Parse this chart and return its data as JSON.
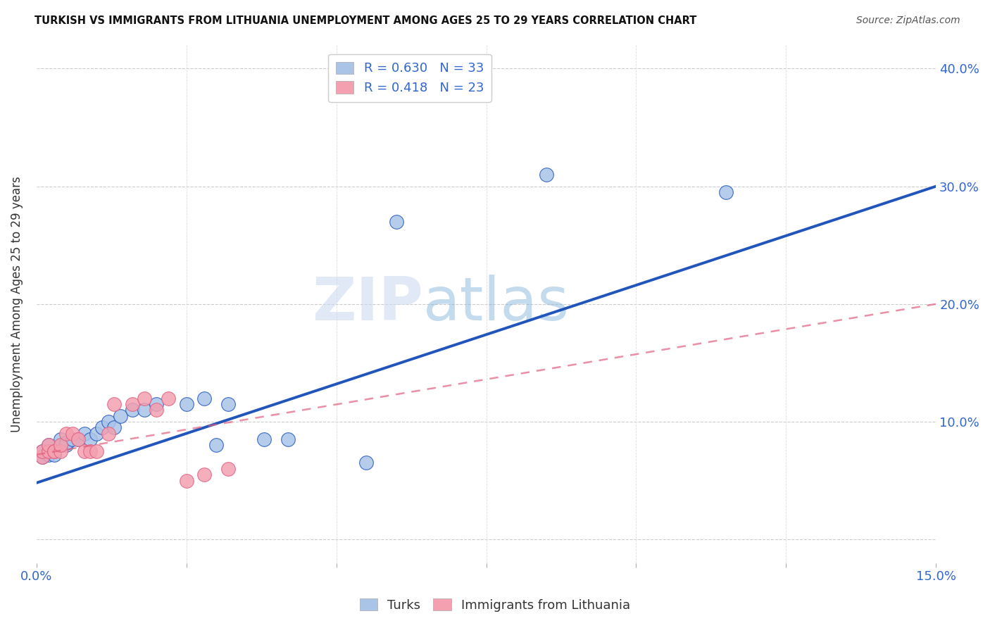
{
  "title": "TURKISH VS IMMIGRANTS FROM LITHUANIA UNEMPLOYMENT AMONG AGES 25 TO 29 YEARS CORRELATION CHART",
  "source": "Source: ZipAtlas.com",
  "ylabel": "Unemployment Among Ages 25 to 29 years",
  "xlim": [
    0.0,
    0.15
  ],
  "ylim": [
    -0.02,
    0.42
  ],
  "xtick_positions": [
    0.0,
    0.025,
    0.05,
    0.075,
    0.1,
    0.125,
    0.15
  ],
  "xticklabels": [
    "0.0%",
    "",
    "",
    "",
    "",
    "",
    "15.0%"
  ],
  "ytick_positions": [
    0.0,
    0.1,
    0.2,
    0.3,
    0.4
  ],
  "yticklabels_right": [
    "",
    "10.0%",
    "20.0%",
    "30.0%",
    "40.0%"
  ],
  "turks_color": "#aac4e8",
  "turks_line_color": "#2255bb",
  "lithuania_color": "#f4a0b0",
  "lithuania_line_color": "#e06080",
  "legend_label_1": "R = 0.630   N = 33",
  "legend_label_2": "R = 0.418   N = 23",
  "turks_x": [
    0.001,
    0.001,
    0.002,
    0.002,
    0.002,
    0.003,
    0.003,
    0.004,
    0.004,
    0.005,
    0.005,
    0.006,
    0.007,
    0.008,
    0.009,
    0.01,
    0.011,
    0.012,
    0.013,
    0.014,
    0.016,
    0.018,
    0.02,
    0.025,
    0.028,
    0.03,
    0.032,
    0.038,
    0.042,
    0.055,
    0.06,
    0.085,
    0.115
  ],
  "turks_y": [
    0.07,
    0.075,
    0.072,
    0.08,
    0.075,
    0.075,
    0.072,
    0.08,
    0.085,
    0.08,
    0.082,
    0.085,
    0.085,
    0.09,
    0.085,
    0.09,
    0.095,
    0.1,
    0.095,
    0.105,
    0.11,
    0.11,
    0.115,
    0.115,
    0.12,
    0.08,
    0.115,
    0.085,
    0.085,
    0.065,
    0.27,
    0.31,
    0.295
  ],
  "lithuania_x": [
    0.001,
    0.001,
    0.002,
    0.002,
    0.003,
    0.003,
    0.004,
    0.004,
    0.005,
    0.006,
    0.007,
    0.008,
    0.009,
    0.01,
    0.012,
    0.013,
    0.016,
    0.018,
    0.02,
    0.022,
    0.025,
    0.028,
    0.032
  ],
  "lithuania_y": [
    0.07,
    0.075,
    0.075,
    0.08,
    0.075,
    0.075,
    0.075,
    0.08,
    0.09,
    0.09,
    0.085,
    0.075,
    0.075,
    0.075,
    0.09,
    0.115,
    0.115,
    0.12,
    0.11,
    0.12,
    0.05,
    0.055,
    0.06
  ],
  "blue_line_x0": 0.0,
  "blue_line_y0": 0.048,
  "blue_line_x1": 0.15,
  "blue_line_y1": 0.3,
  "red_line_x0": 0.0,
  "red_line_y0": 0.072,
  "red_line_x1": 0.15,
  "red_line_y1": 0.2
}
